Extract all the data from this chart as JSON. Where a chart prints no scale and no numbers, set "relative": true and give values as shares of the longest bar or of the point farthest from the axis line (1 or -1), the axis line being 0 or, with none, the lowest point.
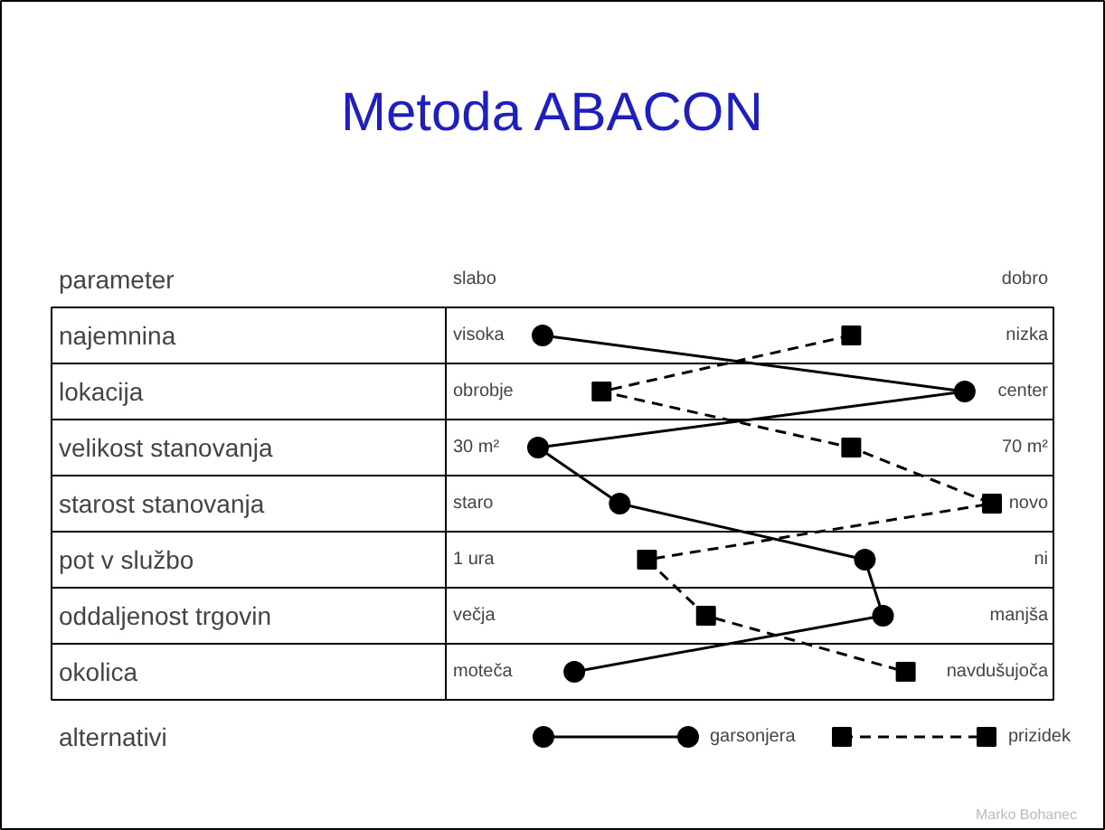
{
  "chart_data": {
    "type": "line",
    "orientation": "horizontal",
    "relative": true,
    "title": "Metoda ABACON",
    "ylabel": "parameter",
    "legend_title": "alternativi",
    "legend": "bottom",
    "grid": false,
    "categories": [
      "najemnina",
      "lokacija",
      "velikost stanovanja",
      "starost stanovanja",
      "pot v službo",
      "oddaljenost trgovin",
      "okolica"
    ],
    "series": [
      {
        "name": "garsonjera",
        "color": "#000000",
        "marker": "circle",
        "line_style": "solid",
        "values": [
          0.01,
          0.94,
          0,
          0.18,
          0.72,
          0.76,
          0.08
        ]
      },
      {
        "name": "prizidek",
        "color": "#000000",
        "marker": "square",
        "line_style": "dashed",
        "values": [
          0.69,
          0.14,
          0.69,
          1.0,
          0.24,
          0.37,
          0.81
        ]
      }
    ],
    "annotations": [
      "slabo",
      "dobro",
      "visoka",
      "nizka",
      "obrobje",
      "center",
      "30 m²",
      "70 m²",
      "staro",
      "novo",
      "1 ura",
      "ni",
      "večja",
      "manjša",
      "moteča",
      "navdušujoča",
      "Marko Bohanec"
    ]
  }
}
